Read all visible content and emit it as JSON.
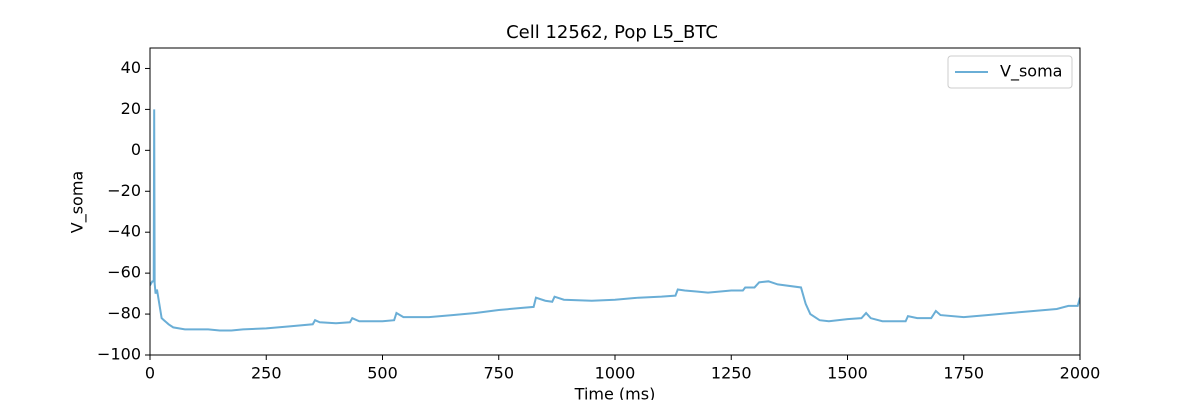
{
  "chart_data": {
    "type": "line",
    "title": "Cell 12562, Pop L5_BTC",
    "xlabel": "Time (ms)",
    "ylabel": "V_soma",
    "x": [
      0,
      5,
      8,
      9,
      10,
      12,
      15,
      20,
      25,
      30,
      35,
      40,
      50,
      75,
      100,
      125,
      150,
      175,
      200,
      250,
      300,
      350,
      355,
      365,
      400,
      430,
      435,
      450,
      500,
      525,
      530,
      545,
      600,
      650,
      700,
      750,
      800,
      825,
      830,
      850,
      865,
      870,
      890,
      950,
      1000,
      1050,
      1100,
      1130,
      1135,
      1150,
      1175,
      1200,
      1250,
      1275,
      1280,
      1300,
      1310,
      1330,
      1350,
      1400,
      1410,
      1420,
      1440,
      1460,
      1500,
      1530,
      1540,
      1550,
      1575,
      1625,
      1630,
      1650,
      1680,
      1690,
      1700,
      1750,
      1800,
      1850,
      1900,
      1950,
      1975,
      1995,
      2000
    ],
    "series": [
      {
        "name": "V_soma",
        "color": "#6aaed6",
        "values": [
          -66,
          -64,
          -64,
          20,
          -65,
          -70,
          -68,
          -75,
          -82,
          -83,
          -84,
          -85,
          -86.5,
          -87.5,
          -87.5,
          -87.5,
          -88,
          -88,
          -87.5,
          -87,
          -86,
          -85,
          -83,
          -84,
          -84.5,
          -84,
          -82,
          -83.5,
          -83.5,
          -83,
          -79.5,
          -81.5,
          -81.5,
          -80.5,
          -79.5,
          -78,
          -77,
          -76.5,
          -72,
          -73.5,
          -74,
          -71.5,
          -73,
          -73.5,
          -73,
          -72,
          -71.5,
          -71,
          -68,
          -68.5,
          -69,
          -69.5,
          -68.5,
          -68.5,
          -67,
          -67,
          -64.5,
          -64,
          -65.5,
          -67,
          -75,
          -80,
          -83,
          -83.5,
          -82.5,
          -82,
          -79.5,
          -82,
          -83.5,
          -83.5,
          -81,
          -82,
          -82,
          -78.5,
          -80.5,
          -81.5,
          -80.5,
          -79.5,
          -78.5,
          -77.5,
          -76,
          -76,
          -72
        ]
      }
    ],
    "xlim": [
      0,
      2000
    ],
    "xticks": [
      0,
      250,
      500,
      750,
      1000,
      1250,
      1500,
      1750,
      2000
    ],
    "ylim": [
      -100,
      50
    ],
    "yticks": [
      {
        "value": -100,
        "label": "−100"
      },
      {
        "value": -80,
        "label": "−80"
      },
      {
        "value": -60,
        "label": "−60"
      },
      {
        "value": -40,
        "label": "−40"
      },
      {
        "value": -20,
        "label": "−20"
      },
      0,
      20,
      40
    ],
    "legend": "upper right"
  }
}
